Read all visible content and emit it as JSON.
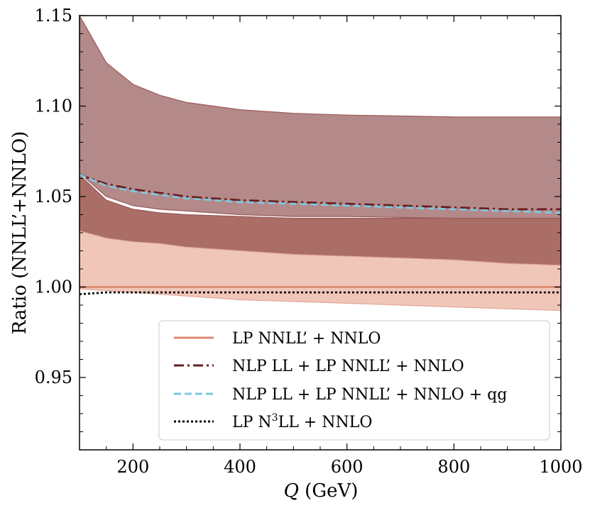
{
  "chart_data": {
    "type": "line",
    "title": "",
    "xlabel_symbol": "Q",
    "xlabel_unit": "(GeV)",
    "ylabel": "Ratio (NNLL’+NNLO)",
    "xlim": [
      100,
      1000
    ],
    "ylim": [
      0.91,
      1.15
    ],
    "xticks": [
      200,
      400,
      600,
      800,
      1000
    ],
    "yticks": [
      0.95,
      1.0,
      1.05,
      1.1,
      1.15
    ],
    "ytick_labels": [
      "0.95",
      "1.00",
      "1.05",
      "1.10",
      "1.15"
    ],
    "x": [
      100,
      150,
      200,
      250,
      300,
      400,
      500,
      600,
      700,
      800,
      900,
      1000
    ],
    "bands": [
      {
        "name": "NLP LL + LP NNLL’ + NNLO band",
        "color": "#b38a89",
        "edge": "#9a5a58",
        "upper": [
          1.15,
          1.124,
          1.112,
          1.106,
          1.102,
          1.098,
          1.096,
          1.095,
          1.0945,
          1.094,
          1.094,
          1.094
        ],
        "lower": [
          1.063,
          1.05,
          1.045,
          1.043,
          1.042,
          1.04,
          1.039,
          1.039,
          1.0385,
          1.038,
          1.038,
          1.038
        ]
      },
      {
        "name": "LP NNLL’ + NNLO band (dark)",
        "color": "#ab6e66",
        "edge": "#9a5a58",
        "upper": [
          1.062,
          1.048,
          1.043,
          1.041,
          1.04,
          1.039,
          1.038,
          1.038,
          1.038,
          1.038,
          1.038,
          1.038
        ],
        "lower": [
          1.031,
          1.027,
          1.025,
          1.024,
          1.022,
          1.02,
          1.018,
          1.017,
          1.016,
          1.015,
          1.013,
          1.012
        ]
      },
      {
        "name": "LP NNLL’ + NNLO band (light)",
        "color": "#f0c6b9",
        "edge": "#e0a898",
        "upper": [
          1.031,
          1.027,
          1.025,
          1.024,
          1.022,
          1.02,
          1.018,
          1.017,
          1.016,
          1.015,
          1.013,
          1.012
        ],
        "lower": [
          0.999,
          0.998,
          0.997,
          0.996,
          0.995,
          0.993,
          0.992,
          0.991,
          0.99,
          0.989,
          0.988,
          0.987
        ]
      }
    ],
    "series": [
      {
        "name": "LP NNLL’ + NNLO",
        "style": "solid",
        "color": "#d98b72",
        "values": [
          1.0,
          1.0,
          1.0,
          1.0,
          1.0,
          1.0,
          1.0,
          1.0,
          1.0,
          1.0,
          1.0,
          1.0
        ]
      },
      {
        "name": "NLP LL + LP NNLL’ + NNLO",
        "style": "dashdot",
        "color": "#6a1c1c",
        "values": [
          1.062,
          1.057,
          1.054,
          1.052,
          1.05,
          1.048,
          1.047,
          1.046,
          1.045,
          1.044,
          1.043,
          1.043
        ]
      },
      {
        "name": "NLP LL + LP NNLL’ + NNLO + qg",
        "style": "dashed",
        "color": "#7ec8e0",
        "values": [
          1.062,
          1.056,
          1.053,
          1.051,
          1.049,
          1.047,
          1.046,
          1.045,
          1.044,
          1.043,
          1.042,
          1.041
        ]
      },
      {
        "name": "LP N³LL + NNLO",
        "style": "dotted",
        "color": "#000000",
        "values": [
          0.996,
          0.997,
          0.997,
          0.997,
          0.997,
          0.997,
          0.997,
          0.997,
          0.997,
          0.997,
          0.997,
          0.997
        ]
      }
    ],
    "legend": {
      "placement": "lower-right",
      "entries": [
        {
          "label": "LP NNLL’ + NNLO",
          "style": "solid",
          "color": "#d98b72"
        },
        {
          "label": "NLP LL + LP NNLL’ + NNLO",
          "style": "dashdot",
          "color": "#6a1c1c"
        },
        {
          "label": "NLP LL + LP NNLL’ + NNLO + qg",
          "style": "dashed",
          "color": "#7ec8e0"
        },
        {
          "label_pre": "LP N",
          "label_sup": "3",
          "label_post": "LL + NNLO",
          "style": "dotted",
          "color": "#000000"
        }
      ]
    }
  }
}
